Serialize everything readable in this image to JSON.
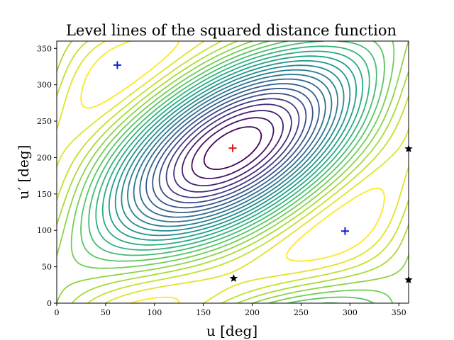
{
  "chart_data": {
    "type": "contour",
    "title": "Level lines of the squared distance function",
    "xlabel": "u [deg]",
    "ylabel": "u′ [deg]",
    "xlim": [
      0,
      360
    ],
    "ylim": [
      0,
      360
    ],
    "xticks": [
      0,
      50,
      100,
      150,
      200,
      250,
      300,
      350
    ],
    "yticks": [
      0,
      50,
      100,
      150,
      200,
      250,
      300,
      350
    ],
    "colormap": "viridis",
    "grid": false,
    "levels": 24,
    "max_point": {
      "x": 180,
      "y": 213,
      "marker": "+",
      "color": "#d62020"
    },
    "min_points": [
      {
        "x": 62,
        "y": 327,
        "marker": "+",
        "color": "#0b1fd6"
      },
      {
        "x": 295,
        "y": 99,
        "marker": "+",
        "color": "#0b1fd6"
      }
    ],
    "saddle_points": [
      {
        "x": 181,
        "y": 34,
        "marker": "★",
        "color": "#000000"
      },
      {
        "x": 360,
        "y": 212,
        "marker": "★",
        "color": "#000000"
      },
      {
        "x": 360,
        "y": 32,
        "marker": "★",
        "color": "#000000"
      }
    ]
  }
}
